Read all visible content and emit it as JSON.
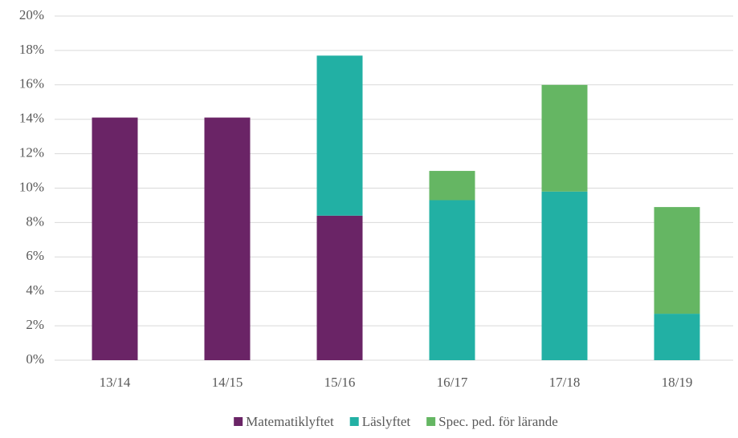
{
  "chart_data": {
    "type": "stacked_bar",
    "categories": [
      "13/14",
      "14/15",
      "15/16",
      "16/17",
      "17/18",
      "18/19"
    ],
    "series": [
      {
        "name": "Matematiklyftet",
        "color": "#6a2466",
        "values": [
          14.1,
          14.1,
          8.4,
          null,
          null,
          null
        ]
      },
      {
        "name": "Läslyftet",
        "color": "#22b0a4",
        "values": [
          null,
          null,
          9.3,
          9.3,
          9.8,
          2.7
        ]
      },
      {
        "name": "Spec. ped. för lärande",
        "color": "#65b663",
        "values": [
          null,
          null,
          null,
          1.7,
          6.2,
          6.2
        ]
      }
    ],
    "ylim": [
      0,
      20
    ],
    "yticks": [
      {
        "value": 0,
        "label": "0%"
      },
      {
        "value": 2,
        "label": "2%"
      },
      {
        "value": 4,
        "label": "4%"
      },
      {
        "value": 6,
        "label": "6%"
      },
      {
        "value": 8,
        "label": "8%"
      },
      {
        "value": 10,
        "label": "10%"
      },
      {
        "value": 12,
        "label": "12%"
      },
      {
        "value": 14,
        "label": "14%"
      },
      {
        "value": 16,
        "label": "16%"
      },
      {
        "value": 18,
        "label": "18%"
      },
      {
        "value": 20,
        "label": "20%"
      }
    ],
    "grid": true,
    "legend": "bottom"
  }
}
